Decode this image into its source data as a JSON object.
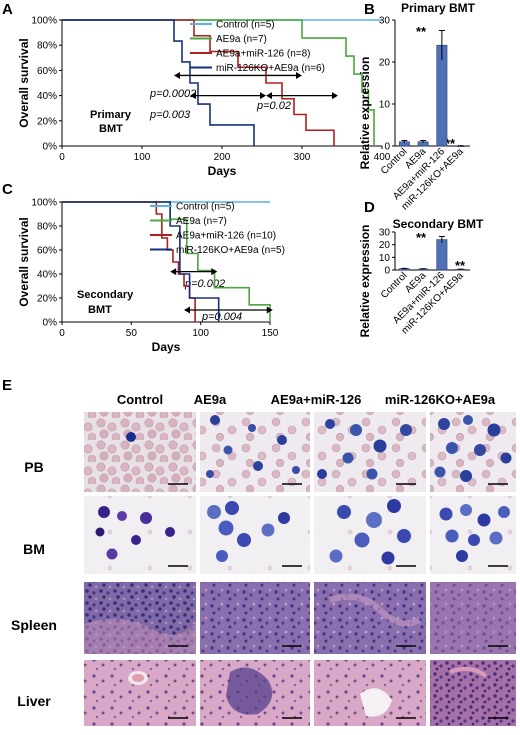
{
  "panels": {
    "A": {
      "letter": "A",
      "annotation": [
        "Primary",
        "BMT"
      ],
      "pvalues": [
        "p=0.0002",
        "p=0.003",
        "p=0.02"
      ]
    },
    "B": {
      "letter": "B",
      "sig_main": "**",
      "sig_side": "**"
    },
    "C": {
      "letter": "C",
      "annotation": [
        "Secondary",
        "BMT"
      ],
      "pvalues": [
        "p=0.002",
        "p=0.004"
      ]
    },
    "D": {
      "letter": "D",
      "sig_main": "**",
      "sig_side": "**"
    },
    "E": {
      "letter": "E"
    }
  },
  "colors": {
    "control": "#5bb2e4",
    "ae9a": "#4aa83c",
    "ae9a_mir126": "#b01e1e",
    "ko_ae9a": "#16307e",
    "bar_fill": "#4f6fb6"
  },
  "chart_data": [
    {
      "id": "A",
      "type": "line",
      "step": true,
      "title": "",
      "xlabel": "Days",
      "ylabel": "Overall survival",
      "xlim": [
        0,
        400
      ],
      "ylim": [
        0,
        100
      ],
      "xticks": [
        "0",
        "100",
        "200",
        "300",
        "400"
      ],
      "yticks": [
        "0%",
        "20%",
        "40%",
        "60%",
        "80%",
        "100%"
      ],
      "legend_position": "top-right",
      "series": [
        {
          "name": "Control (n=5)",
          "color": "#5bb2e4",
          "x": [
            0,
            400
          ],
          "y": [
            100,
            100
          ]
        },
        {
          "name": "AE9a (n=7)",
          "color": "#4aa83c",
          "x": [
            0,
            300,
            355,
            365,
            375,
            383,
            390
          ],
          "y": [
            100,
            85.7,
            71.4,
            57.1,
            42.9,
            28.6,
            0
          ]
        },
        {
          "name": "AE9a+miR-126 (n=8)",
          "color": "#b01e1e",
          "x": [
            0,
            165,
            185,
            220,
            255,
            275,
            290,
            305,
            340
          ],
          "y": [
            100,
            87.5,
            75,
            62.5,
            50,
            37.5,
            25,
            12.5,
            0
          ]
        },
        {
          "name": "miR-126KO+AE9a (n=6)",
          "color": "#16307e",
          "x": [
            0,
            140,
            150,
            160,
            170,
            185,
            240
          ],
          "y": [
            100,
            83.3,
            66.7,
            50,
            33.3,
            16.7,
            0
          ]
        }
      ]
    },
    {
      "id": "B",
      "type": "bar",
      "title": "Primary BMT",
      "ylabel": "Relative expression",
      "categories": [
        "Control",
        "AE9a",
        "AE9a+miR-126",
        "miR-126KO+AE9a"
      ],
      "values": [
        1,
        1,
        24,
        0.05
      ],
      "errors": [
        0.3,
        0.3,
        3.5,
        0.02
      ],
      "ylim": [
        0,
        30
      ],
      "yticks": [
        "0",
        "10",
        "20",
        "30"
      ]
    },
    {
      "id": "C",
      "type": "line",
      "step": true,
      "title": "",
      "xlabel": "Days",
      "ylabel": "Overall survival",
      "xlim": [
        0,
        150
      ],
      "ylim": [
        0,
        100
      ],
      "xticks": [
        "0",
        "50",
        "100",
        "150"
      ],
      "yticks": [
        "0%",
        "20%",
        "40%",
        "60%",
        "80%",
        "100%"
      ],
      "legend_position": "top-right",
      "series": [
        {
          "name": "Control (n=5)",
          "color": "#5bb2e4",
          "x": [
            0,
            150
          ],
          "y": [
            100,
            100
          ]
        },
        {
          "name": "AE9a (n=7)",
          "color": "#4aa83c",
          "x": [
            0,
            78,
            90,
            98,
            110,
            135,
            150
          ],
          "y": [
            100,
            85.7,
            57.1,
            42.9,
            28.6,
            14.3,
            0
          ]
        },
        {
          "name": "AE9a+miR-126 (n=10)",
          "color": "#b01e1e",
          "x": [
            0,
            68,
            72,
            76,
            80,
            84,
            88,
            92,
            96
          ],
          "y": [
            100,
            90,
            70,
            60,
            50,
            40,
            30,
            20,
            0
          ]
        },
        {
          "name": "miR-126KO+AE9a (n=5)",
          "color": "#16307e",
          "x": [
            0,
            78,
            85,
            92,
            113
          ],
          "y": [
            100,
            80,
            40,
            20,
            0
          ]
        }
      ]
    },
    {
      "id": "D",
      "type": "bar",
      "title": "Secondary BMT",
      "ylabel": "Relative expression",
      "categories": [
        "Control",
        "AE9a",
        "AE9a+miR-126",
        "miR-126KO+AE9a"
      ],
      "values": [
        1,
        0.8,
        24,
        0.5
      ],
      "errors": [
        0.3,
        0.2,
        2.5,
        0.2
      ],
      "ylim": [
        0,
        30
      ],
      "yticks": [
        "0",
        "10",
        "20",
        "30"
      ]
    }
  ],
  "histology": {
    "columns": [
      "Control",
      "AE9a",
      "AE9a+miR-126",
      "miR-126KO+AE9a"
    ],
    "rows": [
      "PB",
      "BM",
      "Spleen",
      "Liver"
    ]
  }
}
